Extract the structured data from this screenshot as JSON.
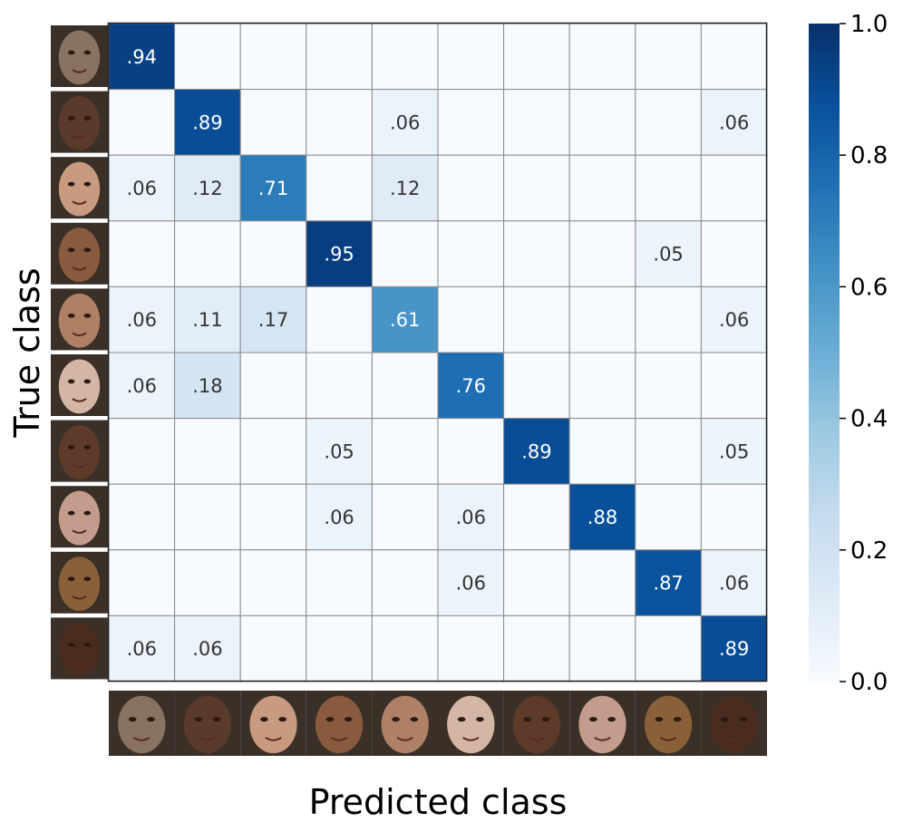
{
  "chart_data": {
    "type": "heatmap",
    "xlabel": "Predicted class",
    "ylabel": "True class",
    "class_labels": "face thumbnails (10 classes)",
    "colormap": "Blues",
    "matrix": [
      [
        0.94,
        0,
        0,
        0,
        0,
        0,
        0,
        0,
        0,
        0
      ],
      [
        0,
        0.89,
        0,
        0,
        0.06,
        0,
        0,
        0,
        0,
        0.06
      ],
      [
        0.06,
        0.12,
        0.71,
        0,
        0.12,
        0,
        0,
        0,
        0,
        0
      ],
      [
        0,
        0,
        0,
        0.95,
        0,
        0,
        0,
        0,
        0.05,
        0
      ],
      [
        0.06,
        0.11,
        0.17,
        0,
        0.61,
        0,
        0,
        0,
        0,
        0.06
      ],
      [
        0.06,
        0.18,
        0,
        0,
        0,
        0.76,
        0,
        0,
        0,
        0
      ],
      [
        0,
        0,
        0,
        0.05,
        0,
        0,
        0.89,
        0,
        0,
        0.05
      ],
      [
        0,
        0,
        0,
        0.06,
        0,
        0.06,
        0,
        0.88,
        0,
        0
      ],
      [
        0,
        0,
        0,
        0,
        0,
        0.06,
        0,
        0,
        0.87,
        0.06
      ],
      [
        0.06,
        0.06,
        0,
        0,
        0,
        0,
        0,
        0,
        0,
        0.89
      ]
    ],
    "cell_labels": [
      [
        ".94",
        "",
        "",
        "",
        "",
        "",
        "",
        "",
        "",
        ""
      ],
      [
        "",
        ".89",
        "",
        "",
        ".06",
        "",
        "",
        "",
        "",
        ".06"
      ],
      [
        ".06",
        ".12",
        ".71",
        "",
        ".12",
        "",
        "",
        "",
        "",
        ""
      ],
      [
        "",
        "",
        "",
        ".95",
        "",
        "",
        "",
        "",
        ".05",
        ""
      ],
      [
        ".06",
        ".11",
        ".17",
        "",
        ".61",
        "",
        "",
        "",
        "",
        ".06"
      ],
      [
        ".06",
        ".18",
        "",
        "",
        "",
        ".76",
        "",
        "",
        "",
        ""
      ],
      [
        "",
        "",
        "",
        ".05",
        "",
        "",
        ".89",
        "",
        "",
        ".05"
      ],
      [
        "",
        "",
        "",
        ".06",
        "",
        ".06",
        "",
        ".88",
        "",
        ""
      ],
      [
        "",
        "",
        "",
        "",
        "",
        ".06",
        "",
        "",
        ".87",
        ".06"
      ],
      [
        ".06",
        ".06",
        "",
        "",
        "",
        "",
        "",
        "",
        "",
        ".89"
      ]
    ],
    "colorbar": {
      "range": [
        0.0,
        1.0
      ],
      "ticks": [
        0.0,
        0.2,
        0.4,
        0.6,
        0.8,
        1.0
      ],
      "tick_labels": [
        "0.0",
        "0.2",
        "0.4",
        "0.6",
        "0.8",
        "1.0"
      ]
    },
    "thumbnail_colors": [
      "#8a7260",
      "#5a3a2a",
      "#c89a80",
      "#8a5a3e",
      "#b08066",
      "#d4b6a4",
      "#5e3a28",
      "#c49c8c",
      "#8a6038",
      "#4a2c1e"
    ]
  }
}
